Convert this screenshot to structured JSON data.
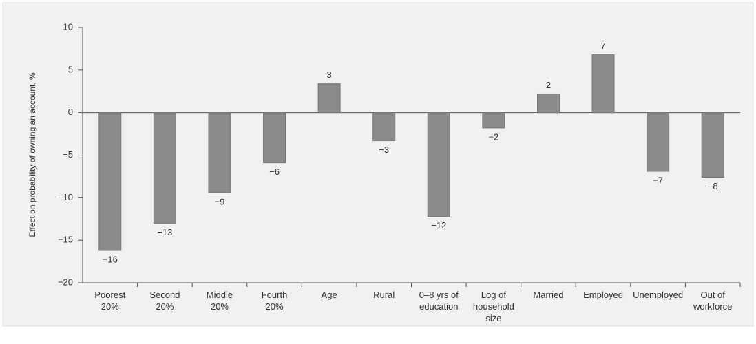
{
  "chart_data": {
    "type": "bar",
    "ylabel": "Effect on probability of owning an account, %",
    "categories": [
      "Poorest\n20%",
      "Second\n20%",
      "Middle\n20%",
      "Fourth\n20%",
      "Age",
      "Rural",
      "0–8 yrs of\neducation",
      "Log of\nhousehold\nsize",
      "Married",
      "Employed",
      "Unemployed",
      "Out of\nworkforce"
    ],
    "values": [
      -16.2,
      -13.0,
      -9.4,
      -5.9,
      3.4,
      -3.3,
      -12.2,
      -1.8,
      2.2,
      6.8,
      -6.9,
      -7.6
    ],
    "value_labels": [
      "−16",
      "−13",
      "−9",
      "−6",
      "3",
      "−3",
      "−12",
      "−2",
      "2",
      "7",
      "−7",
      "−8"
    ],
    "color": "#8a8a8a",
    "ylim": [
      -20,
      10
    ],
    "yticks": [
      10,
      5,
      0,
      {
        "value": -5,
        "label": "−5"
      },
      {
        "value": -10,
        "label": "−10"
      },
      {
        "value": -15,
        "label": "−15"
      },
      {
        "value": -20,
        "label": "−20"
      }
    ]
  }
}
